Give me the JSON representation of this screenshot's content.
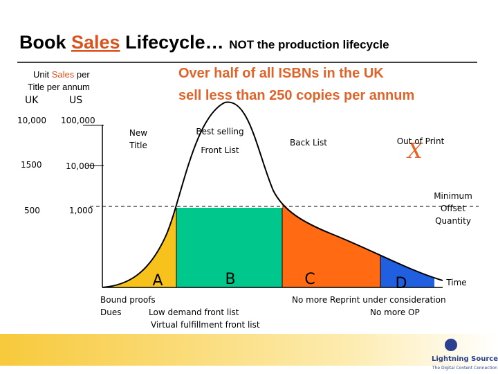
{
  "title": {
    "lead": "Book",
    "highlight": "Sales",
    "rest": "Lifecycle…",
    "sub": "NOT the production lifecycle"
  },
  "callout": [
    "Over half of all ISBNs in the UK",
    "sell less than 250 copies per annum"
  ],
  "axis": {
    "label_lead": "Unit",
    "label_highlight": "Sales",
    "label_tail": "per",
    "label_line2": "Title per annum",
    "columns": [
      "UK",
      "US"
    ],
    "rows": [
      [
        "10,000",
        "100,000"
      ],
      [
        "1500",
        "10,000"
      ],
      [
        "500",
        "1,000"
      ]
    ],
    "x_label": "Time"
  },
  "stages": {
    "new_title": [
      "New",
      "Title"
    ],
    "front_list": [
      "Best selling",
      "Front List"
    ],
    "back_list": "Back List",
    "out_of_print": "Out of Print",
    "out_mark": "X",
    "minimum": [
      "Minimum",
      "Offset",
      "Quantity"
    ]
  },
  "segments": [
    "A",
    "B",
    "C",
    "D"
  ],
  "notes": {
    "left": [
      "Bound proofs",
      "Dues",
      "Low demand front list",
      "Virtual fulfillment front list"
    ],
    "right": [
      "No more Reprint under consideration",
      "No more OP"
    ]
  },
  "footer": {
    "brand": "Lightning Source",
    "tagline": "The Digital Content Connection"
  }
}
